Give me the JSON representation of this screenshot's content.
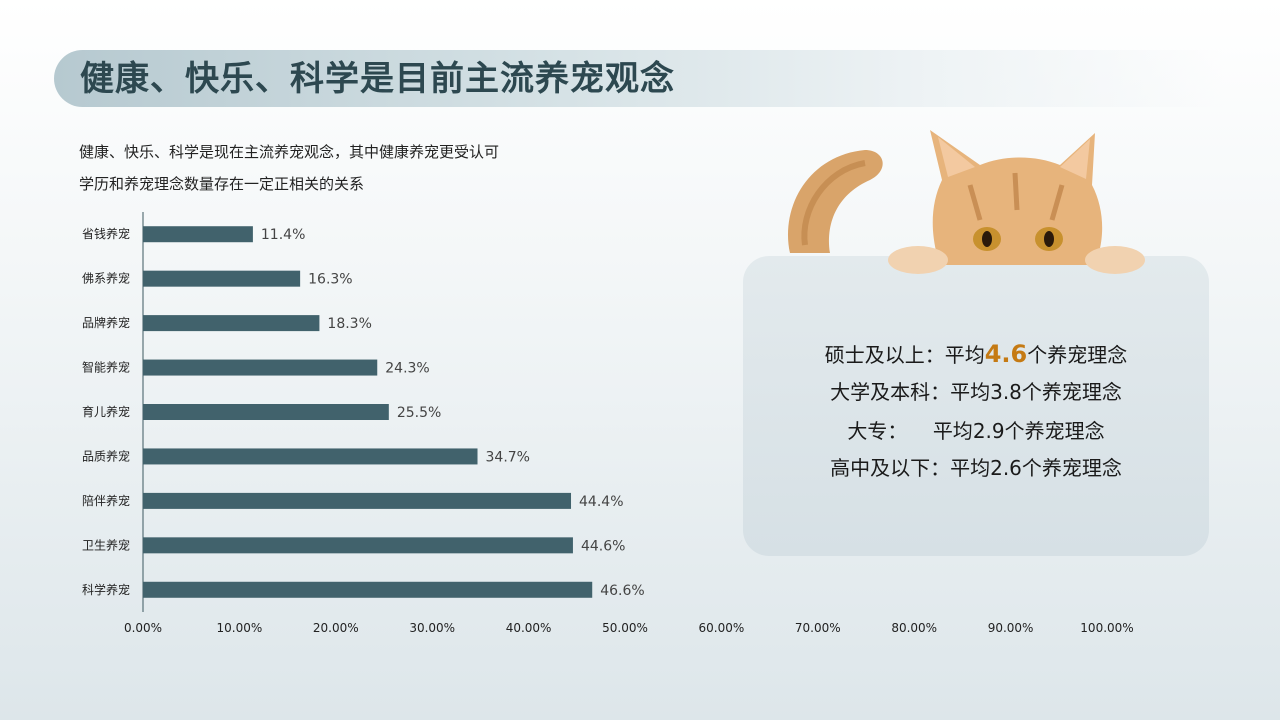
{
  "title": "健康、快乐、科学是目前主流养宠观念",
  "subtitle_lines": [
    "健康、快乐、科学是现在主流养宠观念，其中健康养宠更受认可",
    "学历和养宠理念数量存在一定正相关的关系"
  ],
  "chart_data": {
    "type": "bar",
    "orientation": "horizontal",
    "categories": [
      "省钱养宠",
      "佛系养宠",
      "品牌养宠",
      "智能养宠",
      "育儿养宠",
      "品质养宠",
      "陪伴养宠",
      "卫生养宠",
      "科学养宠"
    ],
    "values": [
      11.4,
      16.3,
      18.3,
      24.3,
      25.5,
      34.7,
      44.4,
      44.6,
      46.6
    ],
    "data_labels": [
      "11.4%",
      "16.3%",
      "18.3%",
      "24.3%",
      "25.5%",
      "34.7%",
      "44.4%",
      "44.6%",
      "46.6%"
    ],
    "xlim": [
      0,
      100
    ],
    "x_ticks": [
      "0.00%",
      "10.00%",
      "20.00%",
      "30.00%",
      "40.00%",
      "50.00%",
      "60.00%",
      "70.00%",
      "80.00%",
      "90.00%",
      "100.00%"
    ],
    "bar_color": "#41626c",
    "grid": false,
    "legend": "none"
  },
  "education_stats": [
    {
      "label": "硕士及以上：",
      "prefix": "平均",
      "value": "4.6",
      "suffix": "个养宠理念",
      "highlight": true
    },
    {
      "label": "大学及本科：",
      "prefix": "平均",
      "value": "3.8",
      "suffix": "个养宠理念",
      "highlight": false
    },
    {
      "label": "大专：    ",
      "prefix": "平均",
      "value": "2.9",
      "suffix": "个养宠理念",
      "highlight": false
    },
    {
      "label": "高中及以下：",
      "prefix": "平均",
      "value": "2.6",
      "suffix": "个养宠理念",
      "highlight": false
    }
  ],
  "colors": {
    "highlight": "#c57a13",
    "title": "#2d4850"
  },
  "illustration": "cat-peeking-over-card"
}
